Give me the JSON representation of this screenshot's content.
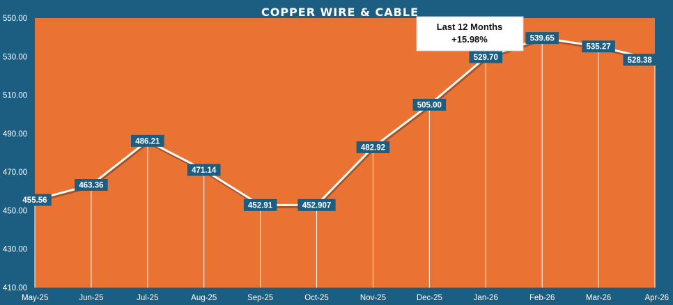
{
  "chart_data": {
    "type": "line",
    "title": "COPPER WIRE & CABLE",
    "categories": [
      "May-25",
      "Jun-25",
      "Jul-25",
      "Aug-25",
      "Sep-25",
      "Oct-25",
      "Nov-25",
      "Dec-25",
      "Jan-26",
      "Feb-26",
      "Mar-26",
      "Apr-26"
    ],
    "series": [
      {
        "values": [
          455.56,
          463.36,
          486.21,
          471.14,
          452.91,
          452.907,
          482.92,
          505.0,
          529.7,
          539.65,
          535.27,
          528.38
        ]
      }
    ],
    "data_labels": [
      "455.56",
      "463.36",
      "486.21",
      "471.14",
      "452.91",
      "452.907",
      "482.92",
      "505.00",
      "529.70",
      "539.65",
      "535.27",
      "528.38"
    ],
    "ylim": [
      410,
      550
    ],
    "yticks": [
      "410.00",
      "430.00",
      "450.00",
      "470.00",
      "490.00",
      "510.00",
      "530.00",
      "550.00"
    ],
    "ytick_values": [
      410,
      430,
      450,
      470,
      490,
      510,
      530,
      550
    ],
    "xlabel": "",
    "ylabel": "",
    "grid": false,
    "annotation": {
      "line1": "Last 12 Months",
      "line2": "+15.98%"
    },
    "colors": {
      "background": "#1b5e82",
      "plot": "#ea7333",
      "line": "#ffffff",
      "label_box": "#1b5e82",
      "drop_line": "#ffffff",
      "callout_box": "#ffffff"
    }
  }
}
